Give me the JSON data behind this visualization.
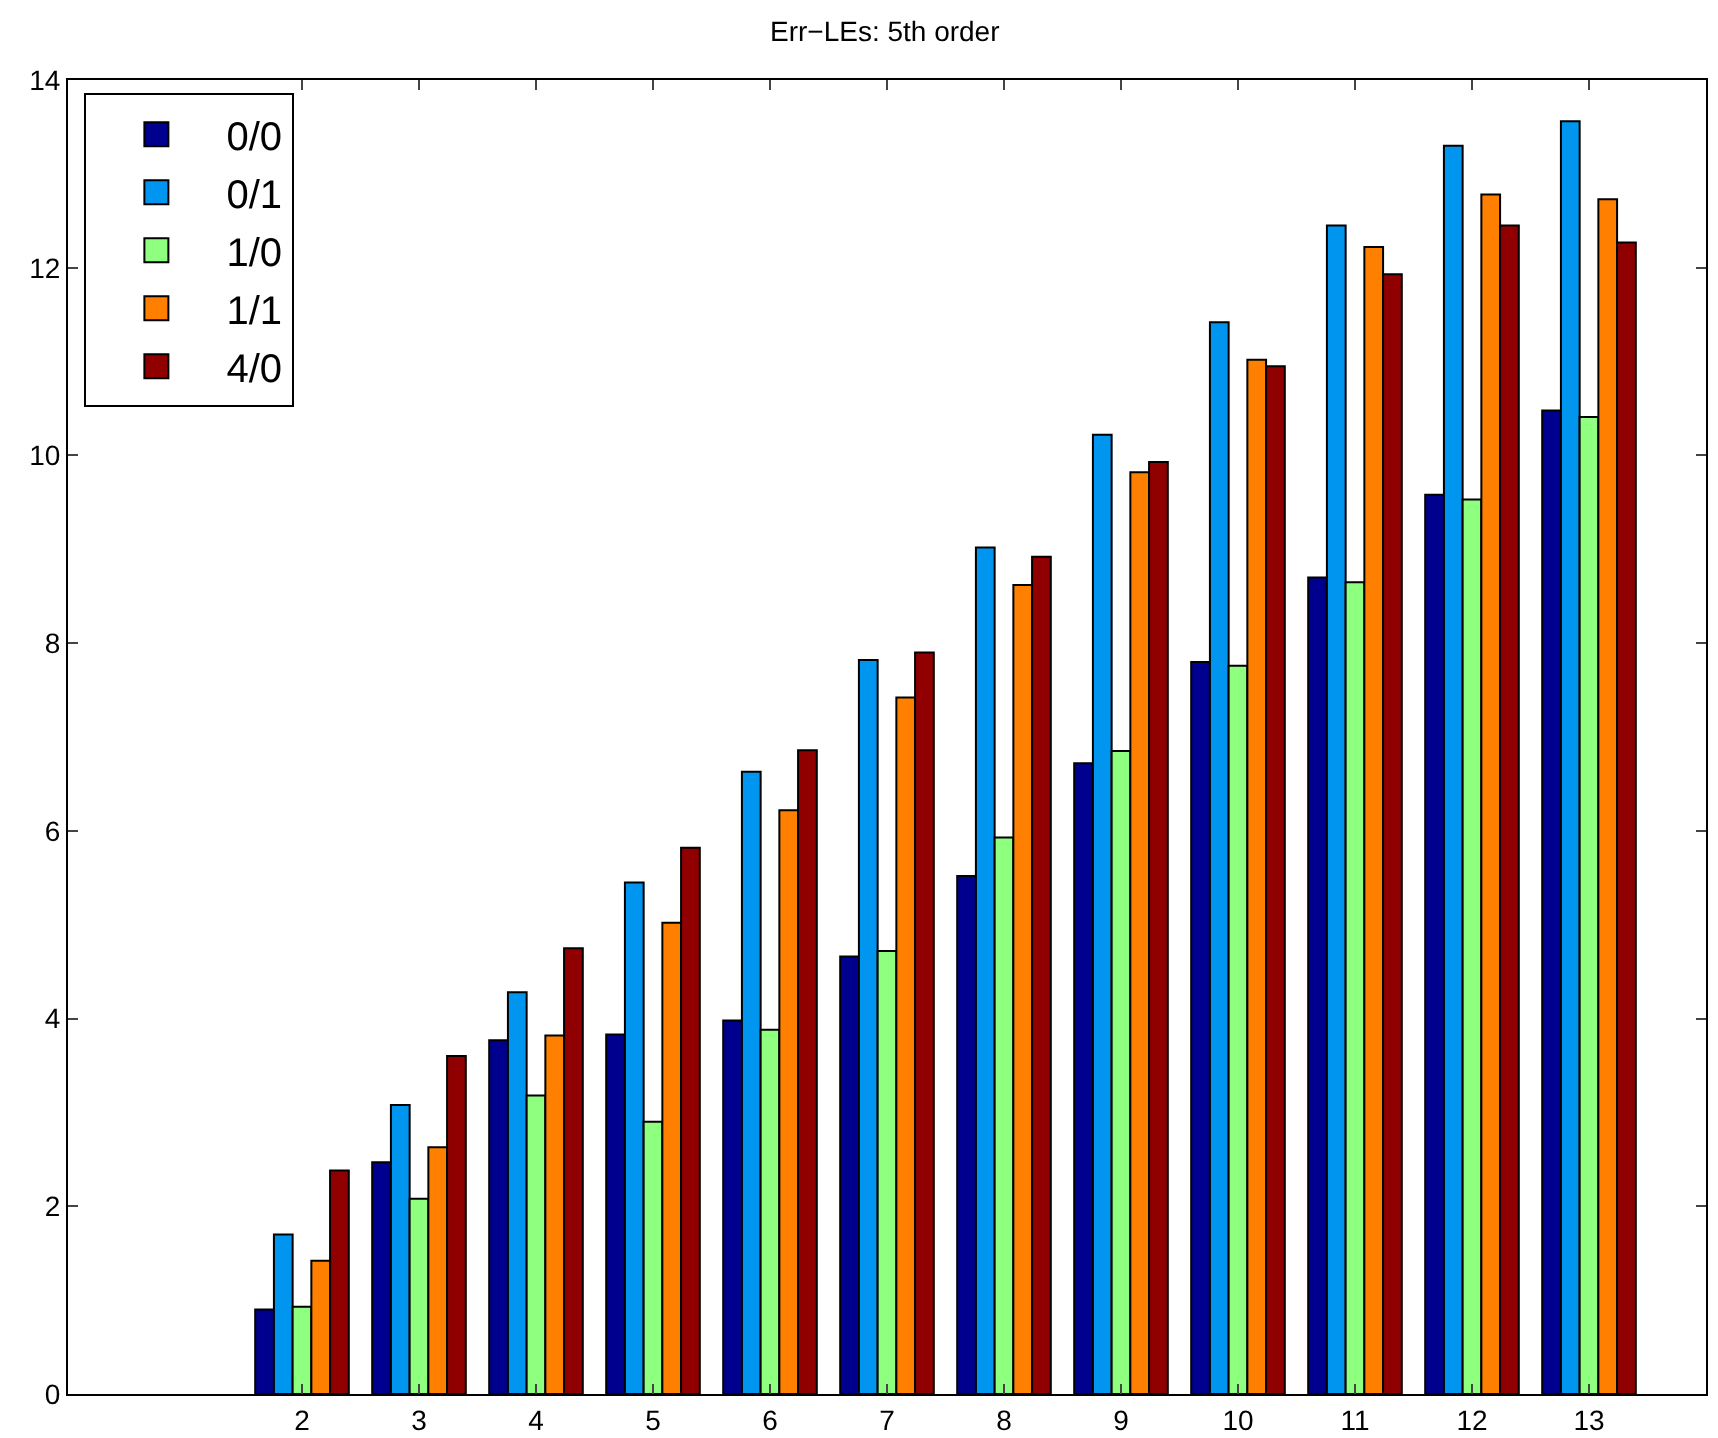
{
  "chart_data": {
    "type": "bar",
    "title": "Err−LEs: 5th order",
    "x": [
      2,
      3,
      4,
      5,
      6,
      7,
      8,
      9,
      10,
      11,
      12,
      13
    ],
    "series": [
      {
        "name": "0/0",
        "color": "#00008f",
        "values": [
          0.9,
          2.47,
          3.77,
          3.83,
          3.98,
          4.66,
          5.52,
          6.72,
          7.8,
          8.7,
          9.58,
          10.48
        ]
      },
      {
        "name": "0/1",
        "color": "#0096f0",
        "values": [
          1.7,
          3.08,
          4.28,
          5.45,
          6.63,
          7.82,
          9.02,
          10.22,
          11.42,
          12.45,
          13.3,
          13.56
        ]
      },
      {
        "name": "1/0",
        "color": "#8fff80",
        "values": [
          0.93,
          2.08,
          3.18,
          2.9,
          3.88,
          4.72,
          5.93,
          6.85,
          7.76,
          8.65,
          9.53,
          10.41
        ]
      },
      {
        "name": "1/1",
        "color": "#ff8000",
        "values": [
          1.42,
          2.63,
          3.82,
          5.02,
          6.22,
          7.42,
          8.62,
          9.82,
          11.02,
          12.22,
          12.78,
          12.73
        ]
      },
      {
        "name": "4/0",
        "color": "#900000",
        "values": [
          2.38,
          3.6,
          4.75,
          5.82,
          6.86,
          7.9,
          8.92,
          9.93,
          10.95,
          11.93,
          12.45,
          12.27
        ]
      }
    ],
    "xlim": [
      0,
      14
    ],
    "xticks": [
      2,
      3,
      4,
      5,
      6,
      7,
      8,
      9,
      10,
      11,
      12,
      13
    ],
    "ylim": [
      0,
      14
    ],
    "yticks": [
      0,
      2,
      4,
      6,
      8,
      10,
      12,
      14
    ],
    "grid": false,
    "legend": "top left"
  }
}
